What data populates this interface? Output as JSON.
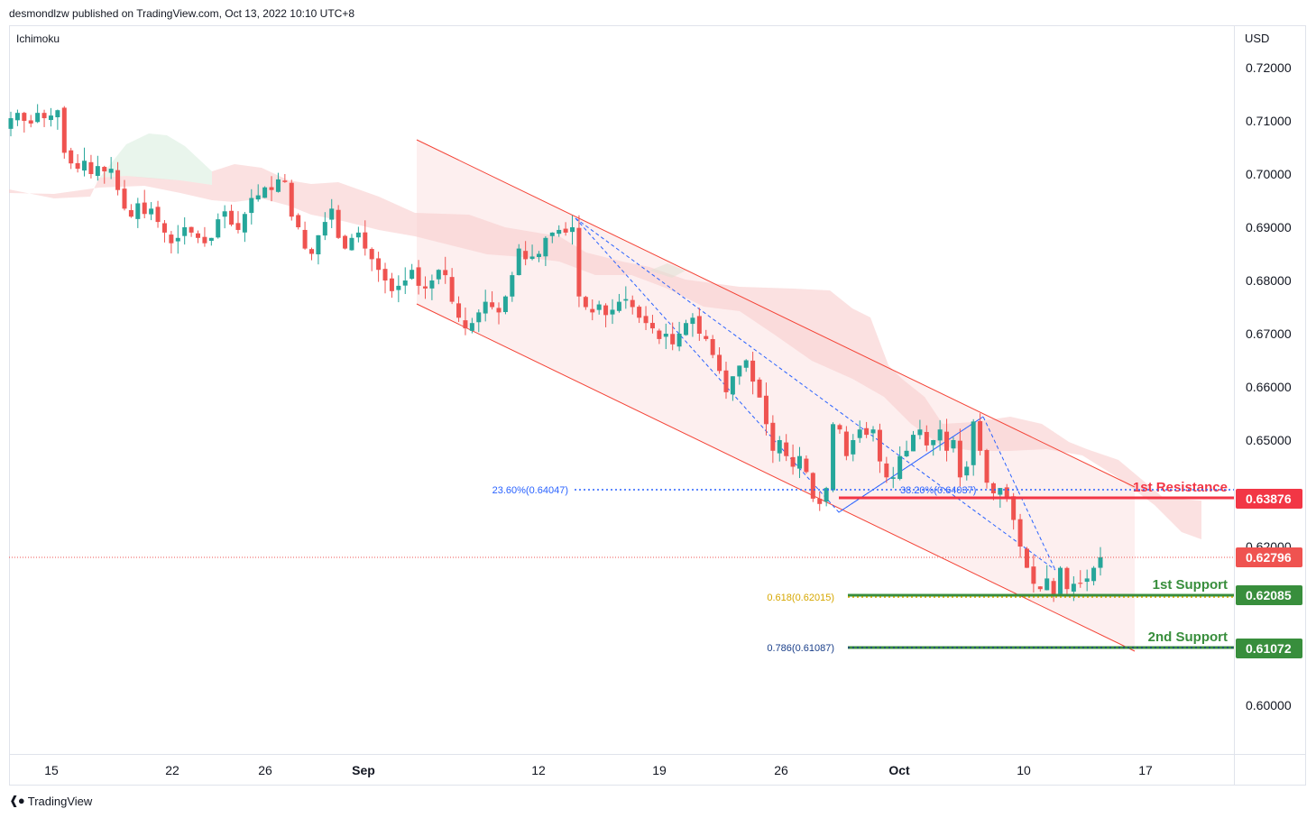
{
  "header": {
    "publisher_line": "desmondlzw published on TradingView.com, Oct 13, 2022 10:10 UTC+8",
    "indicator": "Ichimoku",
    "currency": "USD"
  },
  "footer": {
    "brand": "TradingView",
    "logo_icon": "tradingview-logo-icon"
  },
  "colors": {
    "up": "#26a69a",
    "down": "#ef5350",
    "resistance": "#f23645",
    "support": "#388e3c",
    "fib_blue": "#2962ff",
    "fib_gold": "#d6a700",
    "fib_navy": "#1a3f8a",
    "channel": "#f44336",
    "cloud_red": "#f8c9c9",
    "cloud_green": "#cfe8d4"
  },
  "chart_data": {
    "type": "candlestick",
    "ylim": [
      0.592,
      0.726
    ],
    "y_ticks": [
      "0.72000",
      "0.71000",
      "0.70000",
      "0.69000",
      "0.68000",
      "0.67000",
      "0.66000",
      "0.65000",
      "0.62000",
      "0.60000"
    ],
    "x_ticks": [
      "15",
      "22",
      "26",
      "Sep",
      "12",
      "19",
      "26",
      "Oct",
      "10",
      "17"
    ],
    "price_badges": [
      {
        "label": "0.63876",
        "kind": "resistance"
      },
      {
        "label": "0.62796",
        "kind": "current"
      },
      {
        "label": "0.62085",
        "kind": "support"
      },
      {
        "label": "0.61072",
        "kind": "support"
      }
    ],
    "levels": [
      {
        "name": "1st Resistance",
        "value": 0.63876
      },
      {
        "name": "1st Support",
        "value": 0.62085
      },
      {
        "name": "2nd Support",
        "value": 0.61072
      }
    ],
    "fib_labels": [
      {
        "label": "23.60%(0.64047)",
        "value": 0.64047
      },
      {
        "label": "38.20%(0.64037)",
        "value": 0.64037
      },
      {
        "label": "0.618(0.62015)",
        "value": 0.62015
      },
      {
        "label": "0.786(0.61087)",
        "value": 0.61087
      }
    ],
    "current_price": 0.62796,
    "closes": [
      0.7105,
      0.7115,
      0.71,
      0.7095,
      0.7115,
      0.7105,
      0.711,
      0.712,
      0.704,
      0.702,
      0.701,
      0.7025,
      0.7,
      0.7015,
      0.7005,
      0.701,
      0.697,
      0.6935,
      0.692,
      0.6945,
      0.6925,
      0.6935,
      0.691,
      0.689,
      0.687,
      0.688,
      0.69,
      0.689,
      0.688,
      0.687,
      0.688,
      0.6915,
      0.693,
      0.6905,
      0.6895,
      0.6925,
      0.6955,
      0.696,
      0.6975,
      0.697,
      0.699,
      0.6985,
      0.692,
      0.69,
      0.686,
      0.685,
      0.6885,
      0.691,
      0.6935,
      0.688,
      0.686,
      0.688,
      0.689,
      0.686,
      0.684,
      0.682,
      0.68,
      0.678,
      0.679,
      0.68,
      0.682,
      0.679,
      0.6785,
      0.68,
      0.682,
      0.681,
      0.676,
      0.673,
      0.671,
      0.672,
      0.674,
      0.676,
      0.675,
      0.674,
      0.677,
      0.681,
      0.686,
      0.684,
      0.6845,
      0.685,
      0.688,
      0.689,
      0.6895,
      0.689,
      0.69,
      0.677,
      0.675,
      0.674,
      0.6755,
      0.6735,
      0.6745,
      0.676,
      0.6765,
      0.675,
      0.673,
      0.672,
      0.671,
      0.669,
      0.67,
      0.668,
      0.67,
      0.672,
      0.673,
      0.67,
      0.669,
      0.666,
      0.663,
      0.659,
      0.662,
      0.664,
      0.665,
      0.661,
      0.658,
      0.653,
      0.648,
      0.65,
      0.647,
      0.645,
      0.647,
      0.644,
      0.639,
      0.638,
      0.641,
      0.653,
      0.652,
      0.647,
      0.65,
      0.652,
      0.651,
      0.652,
      0.646,
      0.643,
      0.643,
      0.647,
      0.648,
      0.651,
      0.652,
      0.649,
      0.65,
      0.652,
      0.648,
      0.65,
      0.643,
      0.645,
      0.6535,
      0.648,
      0.642,
      0.64,
      0.641,
      0.639,
      0.635,
      0.63,
      0.626,
      0.623,
      0.622,
      0.624,
      0.621,
      0.626,
      0.622,
      0.623,
      0.623,
      0.624,
      0.626,
      0.628
    ]
  }
}
